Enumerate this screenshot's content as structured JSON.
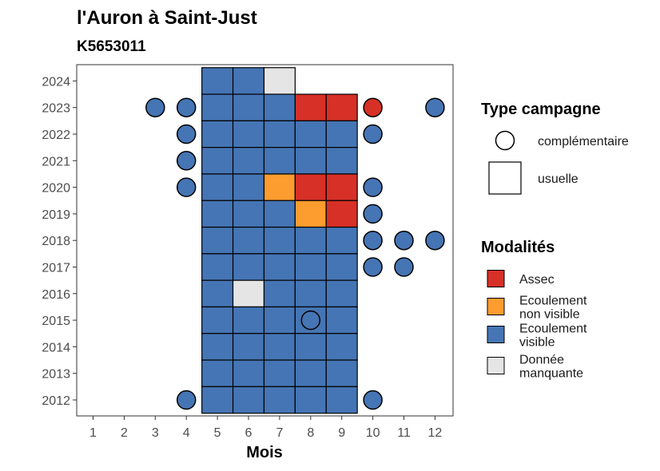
{
  "chart_data": {
    "type": "heatmap",
    "title": "l'Auron à Saint-Just",
    "subtitle": "K5653011",
    "xlabel": "Mois",
    "ylabel": "",
    "x_ticks": [
      1,
      2,
      3,
      4,
      5,
      6,
      7,
      8,
      9,
      10,
      11,
      12
    ],
    "y_ticks": [
      2012,
      2013,
      2014,
      2015,
      2016,
      2017,
      2018,
      2019,
      2020,
      2021,
      2022,
      2023,
      2024
    ],
    "grid": false,
    "legends": {
      "type_campagne": {
        "title": "Type campagne",
        "items": [
          {
            "key": "complementaire",
            "label": "complémentaire",
            "shape": "circle"
          },
          {
            "key": "usuelle",
            "label": "usuelle",
            "shape": "square"
          }
        ]
      },
      "modalites": {
        "title": "Modalités",
        "items": [
          {
            "key": "assec",
            "label_lines": [
              "Assec"
            ],
            "color": "#d73027"
          },
          {
            "key": "nonvisible",
            "label_lines": [
              "Ecoulement",
              "non visible"
            ],
            "color": "#fd9c2f"
          },
          {
            "key": "visible",
            "label_lines": [
              "Ecoulement",
              "visible"
            ],
            "color": "#4575b4"
          },
          {
            "key": "manquante",
            "label_lines": [
              "Donnée",
              "manquante"
            ],
            "color": "#e5e5e5"
          }
        ]
      }
    },
    "usuelle": [
      {
        "year": 2024,
        "months": {
          "5": "visible",
          "6": "visible",
          "7": "manquante"
        }
      },
      {
        "year": 2023,
        "months": {
          "5": "visible",
          "6": "visible",
          "7": "visible",
          "8": "assec",
          "9": "assec"
        }
      },
      {
        "year": 2022,
        "months": {
          "5": "visible",
          "6": "visible",
          "7": "visible",
          "8": "visible",
          "9": "visible"
        }
      },
      {
        "year": 2021,
        "months": {
          "5": "visible",
          "6": "visible",
          "7": "visible",
          "8": "visible",
          "9": "visible"
        }
      },
      {
        "year": 2020,
        "months": {
          "5": "visible",
          "6": "visible",
          "7": "nonvisible",
          "8": "assec",
          "9": "assec"
        }
      },
      {
        "year": 2019,
        "months": {
          "5": "visible",
          "6": "visible",
          "7": "visible",
          "8": "nonvisible",
          "9": "assec"
        }
      },
      {
        "year": 2018,
        "months": {
          "5": "visible",
          "6": "visible",
          "7": "visible",
          "8": "visible",
          "9": "visible"
        }
      },
      {
        "year": 2017,
        "months": {
          "5": "visible",
          "6": "visible",
          "7": "visible",
          "8": "visible",
          "9": "visible"
        }
      },
      {
        "year": 2016,
        "months": {
          "5": "visible",
          "6": "manquante",
          "7": "visible",
          "8": "visible",
          "9": "visible"
        }
      },
      {
        "year": 2015,
        "months": {
          "5": "visible",
          "6": "visible",
          "7": "visible",
          "8": "visible",
          "9": "visible"
        }
      },
      {
        "year": 2014,
        "months": {
          "5": "visible",
          "6": "visible",
          "7": "visible",
          "8": "visible",
          "9": "visible"
        }
      },
      {
        "year": 2013,
        "months": {
          "5": "visible",
          "6": "visible",
          "7": "visible",
          "8": "visible",
          "9": "visible"
        }
      },
      {
        "year": 2012,
        "months": {
          "5": "visible",
          "6": "visible",
          "7": "visible",
          "8": "visible",
          "9": "visible"
        }
      }
    ],
    "complementaire": [
      {
        "year": 2023,
        "month": 3,
        "modalite": "visible"
      },
      {
        "year": 2023,
        "month": 4,
        "modalite": "visible"
      },
      {
        "year": 2023,
        "month": 10,
        "modalite": "assec"
      },
      {
        "year": 2023,
        "month": 12,
        "modalite": "visible"
      },
      {
        "year": 2022,
        "month": 4,
        "modalite": "visible"
      },
      {
        "year": 2022,
        "month": 10,
        "modalite": "visible"
      },
      {
        "year": 2021,
        "month": 4,
        "modalite": "visible"
      },
      {
        "year": 2020,
        "month": 4,
        "modalite": "visible"
      },
      {
        "year": 2020,
        "month": 10,
        "modalite": "visible"
      },
      {
        "year": 2019,
        "month": 10,
        "modalite": "visible"
      },
      {
        "year": 2018,
        "month": 10,
        "modalite": "visible"
      },
      {
        "year": 2018,
        "month": 11,
        "modalite": "visible"
      },
      {
        "year": 2018,
        "month": 12,
        "modalite": "visible"
      },
      {
        "year": 2017,
        "month": 10,
        "modalite": "visible"
      },
      {
        "year": 2017,
        "month": 11,
        "modalite": "visible"
      },
      {
        "year": 2015,
        "month": 8,
        "modalite": "visible"
      },
      {
        "year": 2012,
        "month": 4,
        "modalite": "visible"
      },
      {
        "year": 2012,
        "month": 10,
        "modalite": "visible"
      }
    ]
  }
}
